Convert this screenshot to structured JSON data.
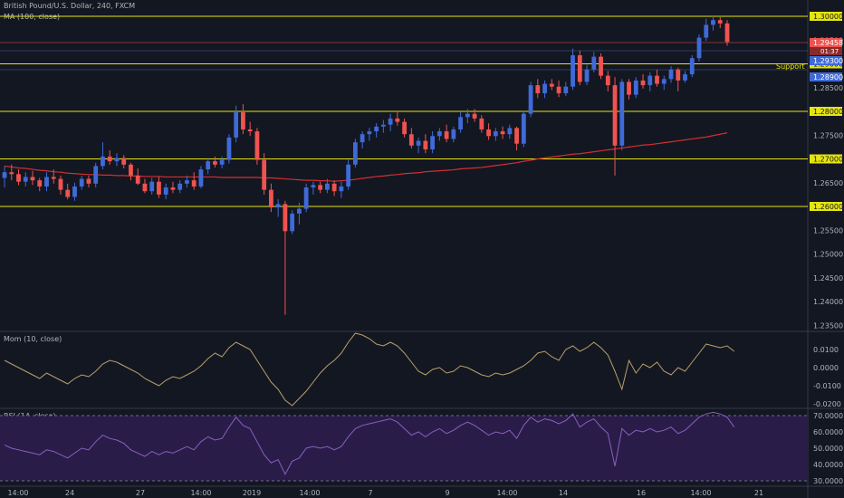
{
  "header": {
    "title": "British Pound/U.S. Dollar, 240, FXCM",
    "indicator": "MA (100, close)"
  },
  "panes": {
    "mom_label": "Mom (10, close)",
    "rsi_label": "RSI (14, close)"
  },
  "annotations": {
    "support": "Support"
  },
  "price_badges": {
    "last": "1.29458",
    "countdown": "01:37",
    "high_marker": "1.29300",
    "low_marker": "1.28900"
  },
  "colors": {
    "background": "#131722",
    "up": "#3f6ad8",
    "down": "#ef5350",
    "ma": "#d32f2f",
    "level": "#e5e510",
    "mom": "#b8a06a",
    "rsi": "#8a5fc0",
    "rsi_band": "#2a1c48"
  },
  "chart_data": {
    "type": "candlestick",
    "symbol": "British Pound/U.S. Dollar",
    "timeframe": "240",
    "source": "FXCM",
    "ylim": [
      1.2325,
      1.3025
    ],
    "y_ticks": [
      "1.30000",
      "1.29500",
      "1.29000",
      "1.28500",
      "1.28000",
      "1.27500",
      "1.27000",
      "1.26500",
      "1.26000",
      "1.25500",
      "1.25000",
      "1.24500",
      "1.24000",
      "1.23500"
    ],
    "x_ticks": [
      "14:00",
      "24",
      "27",
      "14:00",
      "2019",
      "14:00",
      "7",
      "9",
      "14:00",
      "14",
      "16",
      "14:00",
      "21"
    ],
    "horizontal_levels": [
      {
        "value": 1.3,
        "label": "1.30000"
      },
      {
        "value": 1.29,
        "label": "1.29000"
      },
      {
        "value": 1.28,
        "label": "1.28000"
      },
      {
        "value": 1.27,
        "label": "1.27000"
      },
      {
        "value": 1.26,
        "label": "1.26000"
      }
    ],
    "candles": [
      [
        1.266,
        1.2685,
        1.264,
        1.2672
      ],
      [
        1.2672,
        1.2688,
        1.2655,
        1.2668
      ],
      [
        1.2668,
        1.2678,
        1.2645,
        1.2652
      ],
      [
        1.2652,
        1.2672,
        1.2642,
        1.2662
      ],
      [
        1.2662,
        1.2675,
        1.2645,
        1.2655
      ],
      [
        1.2655,
        1.266,
        1.2632,
        1.2642
      ],
      [
        1.2642,
        1.2672,
        1.2632,
        1.2662
      ],
      [
        1.2662,
        1.2678,
        1.2648,
        1.2658
      ],
      [
        1.2658,
        1.2665,
        1.2625,
        1.2635
      ],
      [
        1.2635,
        1.2648,
        1.2615,
        1.262
      ],
      [
        1.262,
        1.265,
        1.2612,
        1.2642
      ],
      [
        1.2642,
        1.2665,
        1.2635,
        1.2658
      ],
      [
        1.2658,
        1.2665,
        1.264,
        1.2648
      ],
      [
        1.2648,
        1.2692,
        1.264,
        1.2685
      ],
      [
        1.2685,
        1.2735,
        1.2678,
        1.2705
      ],
      [
        1.2705,
        1.2718,
        1.2688,
        1.2695
      ],
      [
        1.2695,
        1.2712,
        1.2685,
        1.2702
      ],
      [
        1.2702,
        1.2708,
        1.268,
        1.2688
      ],
      [
        1.2688,
        1.2692,
        1.2655,
        1.2665
      ],
      [
        1.2665,
        1.268,
        1.2645,
        1.2648
      ],
      [
        1.2648,
        1.2658,
        1.2628,
        1.2632
      ],
      [
        1.2632,
        1.266,
        1.2625,
        1.2652
      ],
      [
        1.2652,
        1.2662,
        1.2618,
        1.2625
      ],
      [
        1.2625,
        1.2648,
        1.2615,
        1.264
      ],
      [
        1.264,
        1.2652,
        1.2628,
        1.2635
      ],
      [
        1.2635,
        1.2655,
        1.2628,
        1.2648
      ],
      [
        1.2648,
        1.2665,
        1.264,
        1.2655
      ],
      [
        1.2655,
        1.2672,
        1.2635,
        1.2642
      ],
      [
        1.2642,
        1.2685,
        1.2638,
        1.2678
      ],
      [
        1.2678,
        1.2702,
        1.2668,
        1.2695
      ],
      [
        1.2695,
        1.2705,
        1.2682,
        1.2688
      ],
      [
        1.2688,
        1.2705,
        1.268,
        1.2698
      ],
      [
        1.2698,
        1.2752,
        1.269,
        1.2745
      ],
      [
        1.2745,
        1.2812,
        1.2735,
        1.2798
      ],
      [
        1.2798,
        1.2815,
        1.2752,
        1.2762
      ],
      [
        1.2762,
        1.2778,
        1.2748,
        1.2758
      ],
      [
        1.2758,
        1.2765,
        1.2688,
        1.2698
      ],
      [
        1.2698,
        1.2712,
        1.2625,
        1.2635
      ],
      [
        1.2635,
        1.2648,
        1.2588,
        1.2598
      ],
      [
        1.2598,
        1.2615,
        1.2578,
        1.2605
      ],
      [
        1.2605,
        1.2612,
        1.2372,
        1.2548
      ],
      [
        1.2548,
        1.2592,
        1.2542,
        1.2585
      ],
      [
        1.2585,
        1.2608,
        1.2562,
        1.2595
      ],
      [
        1.2595,
        1.2648,
        1.2588,
        1.264
      ],
      [
        1.264,
        1.2652,
        1.2625,
        1.2645
      ],
      [
        1.2645,
        1.2652,
        1.2628,
        1.2635
      ],
      [
        1.2635,
        1.2658,
        1.2628,
        1.2648
      ],
      [
        1.2648,
        1.2655,
        1.2622,
        1.2632
      ],
      [
        1.2632,
        1.2652,
        1.2618,
        1.2642
      ],
      [
        1.2642,
        1.2698,
        1.2635,
        1.2688
      ],
      [
        1.2688,
        1.2742,
        1.2682,
        1.2735
      ],
      [
        1.2735,
        1.2758,
        1.2722,
        1.2752
      ],
      [
        1.2752,
        1.2765,
        1.2738,
        1.2758
      ],
      [
        1.2758,
        1.2775,
        1.2745,
        1.2768
      ],
      [
        1.2768,
        1.2782,
        1.2755,
        1.2772
      ],
      [
        1.2772,
        1.2795,
        1.2758,
        1.2785
      ],
      [
        1.2785,
        1.2798,
        1.277,
        1.2778
      ],
      [
        1.2778,
        1.2785,
        1.2745,
        1.2752
      ],
      [
        1.2752,
        1.2765,
        1.2722,
        1.2728
      ],
      [
        1.2728,
        1.2745,
        1.2712,
        1.2738
      ],
      [
        1.2738,
        1.2752,
        1.2712,
        1.272
      ],
      [
        1.272,
        1.2758,
        1.2712,
        1.2748
      ],
      [
        1.2748,
        1.2765,
        1.2738,
        1.2758
      ],
      [
        1.2758,
        1.2772,
        1.2735,
        1.2742
      ],
      [
        1.2742,
        1.2768,
        1.2735,
        1.2762
      ],
      [
        1.2762,
        1.2798,
        1.2755,
        1.2788
      ],
      [
        1.2788,
        1.2805,
        1.2775,
        1.2795
      ],
      [
        1.2795,
        1.2805,
        1.2778,
        1.2785
      ],
      [
        1.2785,
        1.2792,
        1.2755,
        1.2762
      ],
      [
        1.2762,
        1.2775,
        1.274,
        1.2748
      ],
      [
        1.2748,
        1.2765,
        1.2738,
        1.2758
      ],
      [
        1.2758,
        1.2768,
        1.2742,
        1.2752
      ],
      [
        1.2752,
        1.2772,
        1.2742,
        1.2765
      ],
      [
        1.2765,
        1.2768,
        1.2718,
        1.2732
      ],
      [
        1.2732,
        1.2802,
        1.2725,
        1.2795
      ],
      [
        1.2795,
        1.2862,
        1.2788,
        1.2855
      ],
      [
        1.2855,
        1.2868,
        1.2828,
        1.2838
      ],
      [
        1.2838,
        1.2865,
        1.2828,
        1.2858
      ],
      [
        1.2858,
        1.2868,
        1.2845,
        1.2852
      ],
      [
        1.2852,
        1.2865,
        1.283,
        1.2838
      ],
      [
        1.2838,
        1.2862,
        1.2832,
        1.2852
      ],
      [
        1.2852,
        1.2932,
        1.2845,
        1.2918
      ],
      [
        1.2918,
        1.2928,
        1.2855,
        1.2862
      ],
      [
        1.2862,
        1.2898,
        1.2855,
        1.2888
      ],
      [
        1.2888,
        1.2925,
        1.2882,
        1.2915
      ],
      [
        1.2915,
        1.2922,
        1.2868,
        1.2875
      ],
      [
        1.2875,
        1.2885,
        1.2842,
        1.2855
      ],
      [
        1.2855,
        1.2872,
        1.2665,
        1.2728
      ],
      [
        1.2728,
        1.2868,
        1.2718,
        1.2862
      ],
      [
        1.2862,
        1.2868,
        1.2825,
        1.2835
      ],
      [
        1.2835,
        1.2872,
        1.2828,
        1.2865
      ],
      [
        1.2865,
        1.2878,
        1.2848,
        1.2855
      ],
      [
        1.2855,
        1.2882,
        1.2842,
        1.2875
      ],
      [
        1.2875,
        1.2888,
        1.2852,
        1.2858
      ],
      [
        1.2858,
        1.2875,
        1.2845,
        1.2868
      ],
      [
        1.2868,
        1.2895,
        1.286,
        1.2888
      ],
      [
        1.2888,
        1.2892,
        1.2842,
        1.2865
      ],
      [
        1.2865,
        1.2885,
        1.286,
        1.2878
      ],
      [
        1.2878,
        1.2918,
        1.2872,
        1.2912
      ],
      [
        1.2912,
        1.2962,
        1.2905,
        1.2955
      ],
      [
        1.2955,
        1.2995,
        1.2948,
        1.2982
      ],
      [
        1.2982,
        1.3002,
        1.297,
        1.2992
      ],
      [
        1.2992,
        1.2998,
        1.2975,
        1.2985
      ],
      [
        1.2985,
        1.2992,
        1.2938,
        1.2946
      ]
    ],
    "ma100": [
      1.2685,
      1.2683,
      1.2681,
      1.268,
      1.2678,
      1.2676,
      1.2675,
      1.2673,
      1.2672,
      1.267,
      1.2669,
      1.2668,
      1.2667,
      1.2667,
      1.2666,
      1.2666,
      1.2665,
      1.2665,
      1.2664,
      1.2664,
      1.2663,
      1.2663,
      1.2663,
      1.2662,
      1.2662,
      1.2662,
      1.2662,
      1.2662,
      1.2662,
      1.2662,
      1.2662,
      1.2661,
      1.2661,
      1.2661,
      1.2661,
      1.2661,
      1.2661,
      1.266,
      1.266,
      1.2659,
      1.2658,
      1.2657,
      1.2656,
      1.2655,
      1.2655,
      1.2654,
      1.2654,
      1.2653,
      1.2654,
      1.2655,
      1.2657,
      1.2659,
      1.2661,
      1.2663,
      1.2664,
      1.2666,
      1.2667,
      1.2669,
      1.267,
      1.2671,
      1.2673,
      1.2674,
      1.2675,
      1.2676,
      1.2677,
      1.2679,
      1.268,
      1.2681,
      1.2682,
      1.2684,
      1.2686,
      1.2688,
      1.269,
      1.2692,
      1.2695,
      1.2697,
      1.27,
      1.2702,
      1.2704,
      1.2706,
      1.2708,
      1.271,
      1.2711,
      1.2713,
      1.2715,
      1.2717,
      1.2719,
      1.2721,
      1.2723,
      1.2725,
      1.2727,
      1.2729,
      1.273,
      1.2732,
      1.2734,
      1.2736,
      1.2738,
      1.274,
      1.2742,
      1.2744,
      1.2746,
      1.2749,
      1.2752,
      1.2755
    ],
    "mom_ylim": [
      -0.028,
      0.018
    ],
    "mom_ticks": [
      "0.0100",
      "0.0000",
      "-0.0100",
      "-0.0200"
    ],
    "momentum": [
      0.004,
      0.002,
      0.0,
      -0.002,
      -0.004,
      -0.006,
      -0.003,
      -0.005,
      -0.007,
      -0.009,
      -0.006,
      -0.004,
      -0.005,
      -0.002,
      0.002,
      0.004,
      0.003,
      0.001,
      -0.001,
      -0.003,
      -0.006,
      -0.008,
      -0.01,
      -0.007,
      -0.005,
      -0.006,
      -0.004,
      -0.002,
      0.001,
      0.005,
      0.008,
      0.006,
      0.011,
      0.014,
      0.012,
      0.01,
      0.004,
      -0.002,
      -0.008,
      -0.012,
      -0.018,
      -0.021,
      -0.017,
      -0.013,
      -0.008,
      -0.003,
      0.001,
      0.004,
      0.008,
      0.014,
      0.019,
      0.018,
      0.016,
      0.013,
      0.012,
      0.014,
      0.012,
      0.008,
      0.003,
      -0.002,
      -0.004,
      -0.001,
      0.0,
      -0.003,
      -0.002,
      0.001,
      0.0,
      -0.002,
      -0.004,
      -0.005,
      -0.003,
      -0.004,
      -0.003,
      -0.001,
      0.001,
      0.004,
      0.008,
      0.009,
      0.006,
      0.004,
      0.01,
      0.012,
      0.009,
      0.011,
      0.014,
      0.011,
      0.007,
      -0.002,
      -0.012,
      0.004,
      -0.003,
      0.002,
      0.0,
      0.003,
      -0.002,
      -0.004,
      0.0,
      -0.002,
      0.003,
      0.008,
      0.013,
      0.012,
      0.011,
      0.012,
      0.009
    ],
    "rsi_ylim": [
      25,
      75
    ],
    "rsi_band": [
      30,
      70
    ],
    "rsi_ticks": [
      "70.0000",
      "60.0000",
      "50.0000",
      "40.0000",
      "30.0000"
    ],
    "rsi": [
      52,
      50,
      49,
      48,
      47,
      46,
      49,
      48,
      46,
      44,
      47,
      50,
      49,
      54,
      58,
      56,
      55,
      53,
      49,
      47,
      45,
      48,
      46,
      48,
      47,
      49,
      51,
      49,
      54,
      57,
      55,
      56,
      63,
      69,
      64,
      62,
      54,
      46,
      41,
      43,
      34,
      42,
      44,
      50,
      51,
      50,
      51,
      49,
      51,
      57,
      62,
      64,
      65,
      66,
      67,
      68,
      66,
      62,
      58,
      60,
      57,
      60,
      62,
      59,
      61,
      64,
      66,
      64,
      61,
      58,
      60,
      59,
      61,
      56,
      64,
      69,
      66,
      68,
      67,
      65,
      67,
      71,
      63,
      66,
      68,
      63,
      59,
      39,
      62,
      58,
      61,
      60,
      62,
      60,
      61,
      63,
      59,
      61,
      65,
      69,
      71,
      72,
      71,
      69,
      63
    ]
  }
}
